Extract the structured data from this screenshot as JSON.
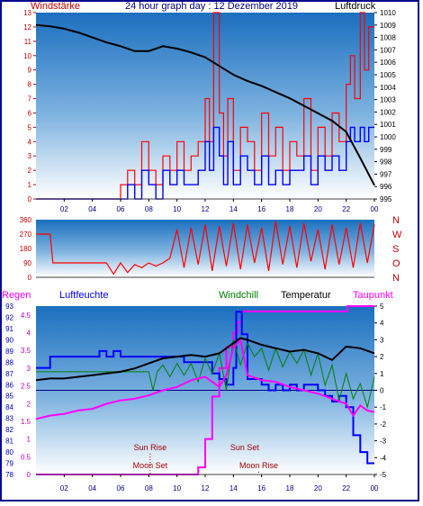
{
  "colors": {
    "wind": "#ff0000",
    "gust": "#ff0000",
    "speed": "#0000ff",
    "pressure": "#000000",
    "rain": "#ff00ff",
    "humidity": "#0000ff",
    "windchill": "#008000",
    "temperature": "#000000",
    "dewpoint": "#ff00ff",
    "direction": "#ff0000"
  },
  "chart_data": [
    {
      "type": "line",
      "title": "24 hour graph day : 12 Dezember 2019",
      "left_label": "Windstärke",
      "right_label": "Luftdruck",
      "x_ticks": [
        "02",
        "04",
        "06",
        "08",
        "10",
        "12",
        "14",
        "16",
        "18",
        "20",
        "22",
        "00"
      ],
      "y_left_ticks": [
        "0",
        "1",
        "2",
        "3",
        "4",
        "5",
        "6",
        "7",
        "8",
        "9",
        "10",
        "11",
        "12",
        "13"
      ],
      "y_right_ticks": [
        "995",
        "996",
        "997",
        "998",
        "999",
        "1000",
        "1001",
        "1002",
        "1003",
        "1004",
        "1005",
        "1006",
        "1007",
        "1008",
        "1009",
        "1010"
      ],
      "ylim_left": [
        0,
        13
      ],
      "ylim_right": [
        995,
        1010
      ],
      "xlim": [
        0,
        24
      ],
      "series": [
        {
          "key": "pressure",
          "axis": "right",
          "x": [
            0,
            1,
            2,
            3,
            4,
            5,
            6,
            7,
            8,
            9,
            10,
            11,
            12,
            13,
            14,
            15,
            16,
            17,
            18,
            19,
            20,
            21,
            22,
            23,
            24
          ],
          "y": [
            1009.0,
            1008.9,
            1008.7,
            1008.4,
            1008.0,
            1007.6,
            1007.3,
            1006.9,
            1006.9,
            1007.3,
            1007.1,
            1006.8,
            1006.4,
            1005.7,
            1005.0,
            1004.5,
            1004.1,
            1003.6,
            1003.1,
            1002.5,
            1001.9,
            1001.3,
            1000.4,
            998.3,
            996.1
          ]
        },
        {
          "key": "gust",
          "axis": "left",
          "x": [
            0,
            5.5,
            6,
            6.5,
            7,
            7.5,
            8,
            8.5,
            9,
            9.5,
            10,
            10.5,
            11,
            11.5,
            12,
            12.3,
            12.6,
            13,
            13.3,
            13.6,
            14,
            14.5,
            15,
            15.5,
            16,
            16.5,
            17,
            17.5,
            18,
            18.5,
            19,
            19.5,
            20,
            20.5,
            21,
            21.5,
            22,
            22.3,
            22.6,
            23,
            23.3,
            23.6,
            24
          ],
          "y": [
            0,
            0,
            1,
            2,
            1,
            4,
            2,
            1,
            3,
            2,
            4,
            2,
            3,
            4,
            7,
            4,
            13,
            6,
            3,
            7,
            2,
            5,
            4,
            2,
            6,
            3,
            5,
            2,
            4,
            3,
            7,
            2,
            5,
            3,
            6,
            4,
            8,
            10,
            7,
            13,
            9,
            12,
            12
          ]
        },
        {
          "key": "speed",
          "axis": "left",
          "x": [
            0,
            5.5,
            6,
            6.5,
            7,
            7.5,
            8,
            8.5,
            9,
            9.5,
            10,
            10.5,
            11,
            11.5,
            12,
            12.3,
            12.6,
            13,
            13.3,
            13.6,
            14,
            14.5,
            15,
            15.5,
            16,
            16.5,
            17,
            17.5,
            18,
            18.5,
            19,
            19.5,
            20,
            20.5,
            21,
            21.5,
            22,
            22.3,
            22.6,
            23,
            23.3,
            23.6,
            24
          ],
          "y": [
            0,
            0,
            0,
            1,
            0,
            2,
            1,
            0,
            2,
            1,
            2,
            1,
            1,
            2,
            4,
            2,
            5,
            3,
            1,
            4,
            1,
            3,
            2,
            1,
            3,
            1,
            2,
            1,
            2,
            2,
            3,
            1,
            3,
            2,
            3,
            2,
            4,
            5,
            4,
            5,
            4,
            5,
            5
          ]
        }
      ]
    },
    {
      "type": "line",
      "y_right_letters": [
        "N",
        "W",
        "S",
        "O",
        "N"
      ],
      "y_left_ticks": [
        "0",
        "90",
        "180",
        "270",
        "360"
      ],
      "ylim": [
        0,
        360
      ],
      "xlim": [
        0,
        24
      ],
      "series": [
        {
          "key": "direction",
          "x": [
            0,
            1,
            1.2,
            3,
            4,
            5,
            5.5,
            6,
            6.5,
            7,
            7.5,
            8,
            8.5,
            9,
            9.5,
            10,
            10.5,
            11,
            11.5,
            12,
            12.5,
            13,
            13.5,
            14,
            14.5,
            15,
            15.5,
            16,
            16.5,
            17,
            17.5,
            18,
            18.5,
            19,
            19.5,
            20,
            20.5,
            21,
            21.5,
            22,
            22.5,
            23,
            23.5,
            24
          ],
          "y": [
            270,
            270,
            90,
            90,
            90,
            90,
            20,
            90,
            30,
            80,
            60,
            90,
            70,
            90,
            120,
            300,
            60,
            310,
            80,
            330,
            40,
            320,
            70,
            340,
            50,
            330,
            90,
            310,
            40,
            350,
            80,
            320,
            60,
            340,
            100,
            300,
            50,
            330,
            80,
            310,
            60,
            340,
            90,
            330
          ]
        }
      ]
    },
    {
      "type": "line",
      "legend": [
        "Regen",
        "Luftfeuchte",
        "Windchill",
        "Temperatur",
        "Taupunkt"
      ],
      "annotations": [
        "Sun Rise",
        "Moon Set",
        "Sun Set",
        "Moon Rise"
      ],
      "y_rain_ticks": [
        "0",
        "0.5",
        "1",
        "1.5",
        "2",
        "2.5",
        "3",
        "3.5",
        "4",
        "4.5"
      ],
      "y_hum_ticks": [
        "78",
        "79",
        "80",
        "81",
        "82",
        "83",
        "84",
        "85",
        "86",
        "87",
        "88",
        "89",
        "90",
        "91",
        "92",
        "93"
      ],
      "y_temp_ticks": [
        "-5",
        "-4",
        "-3",
        "-2",
        "-1",
        "0",
        "1",
        "2",
        "3",
        "4",
        "5"
      ],
      "x_ticks": [
        "02",
        "04",
        "06",
        "08",
        "10",
        "12",
        "14",
        "16",
        "18",
        "20",
        "22",
        "00"
      ],
      "xlim": [
        0,
        24
      ],
      "ylim_hum": [
        78,
        93
      ],
      "ylim_temp": [
        -5,
        5
      ],
      "ylim_rain": [
        0,
        4.75
      ],
      "series": [
        {
          "key": "rain",
          "axis": "rain",
          "x": [
            0,
            11,
            11.5,
            12,
            12.5,
            13,
            13.5,
            14,
            14.3,
            14.6,
            15,
            20,
            22,
            22.1,
            24
          ],
          "y": [
            0,
            0,
            0.2,
            1.0,
            2.2,
            3.0,
            3.6,
            4.0,
            4.3,
            4.6,
            4.6,
            4.6,
            4.6,
            4.75,
            4.75
          ]
        },
        {
          "key": "humidity",
          "axis": "hum",
          "x": [
            0,
            0.5,
            1,
            4,
            4.5,
            5,
            5.5,
            6,
            10,
            10.5,
            12,
            12.5,
            13,
            13.5,
            14,
            14.2,
            14.6,
            15,
            16,
            16.5,
            17,
            17.5,
            18,
            18.5,
            19,
            20,
            20.5,
            21,
            21.5,
            22,
            22.5,
            23,
            23.5,
            24
          ],
          "y": [
            87.5,
            87.5,
            88.5,
            88.5,
            89.0,
            88.5,
            89.0,
            88.5,
            88.5,
            88.0,
            88.0,
            87.0,
            86.5,
            86.0,
            87.5,
            92.5,
            90.5,
            86.5,
            86.0,
            85.5,
            86.0,
            85.5,
            86.0,
            85.5,
            86.0,
            85.5,
            85.0,
            84.5,
            85.0,
            84.0,
            81.5,
            80.0,
            79.0,
            79.0
          ]
        },
        {
          "key": "temperature",
          "axis": "temp",
          "x": [
            0,
            1,
            2,
            3,
            4,
            5,
            6,
            7,
            8,
            9,
            10,
            11,
            12,
            13,
            14,
            14.5,
            15,
            16,
            17,
            18,
            19,
            20,
            21,
            22,
            23,
            24
          ],
          "y": [
            0.6,
            0.7,
            0.7,
            0.8,
            0.9,
            1.0,
            1.1,
            1.3,
            1.6,
            1.9,
            2.0,
            2.1,
            2.0,
            2.2,
            2.8,
            3.1,
            3.0,
            2.7,
            2.5,
            2.3,
            2.4,
            2.2,
            1.8,
            2.6,
            2.5,
            2.2
          ]
        },
        {
          "key": "windchill",
          "axis": "temp",
          "x": [
            0,
            8,
            8.3,
            8.6,
            9,
            9.5,
            10,
            10.5,
            11,
            11.5,
            12,
            12.5,
            13,
            13.5,
            14,
            14.5,
            15,
            15.5,
            16,
            16.5,
            17,
            17.5,
            18,
            18.5,
            19,
            19.5,
            20,
            20.5,
            21,
            21.5,
            22,
            22.5,
            23,
            23.5,
            24
          ],
          "y": [
            1.1,
            1.1,
            0.0,
            1.1,
            1.5,
            0.8,
            1.6,
            0.9,
            1.6,
            0.5,
            1.9,
            1.0,
            2.2,
            0.0,
            3.0,
            1.5,
            2.8,
            2.0,
            2.5,
            1.2,
            2.5,
            1.4,
            2.3,
            1.6,
            2.4,
            0.9,
            2.2,
            0.3,
            1.5,
            -0.6,
            1.0,
            -0.5,
            0.4,
            -1.0,
            0.8
          ]
        },
        {
          "key": "dewpoint",
          "axis": "temp",
          "x": [
            0,
            1,
            2,
            3,
            4,
            5,
            6,
            7,
            8,
            9,
            10,
            11,
            12,
            12.5,
            13,
            13.5,
            14,
            14.5,
            15,
            16,
            17,
            18,
            19,
            20,
            21,
            22,
            22.5,
            23,
            23.5,
            24
          ],
          "y": [
            -1.7,
            -1.5,
            -1.4,
            -1.2,
            -1.1,
            -0.8,
            -0.6,
            -0.5,
            -0.3,
            0.0,
            0.2,
            0.6,
            0.8,
            0.5,
            0.2,
            0.9,
            2.5,
            3.0,
            0.9,
            0.6,
            0.5,
            0.2,
            0.0,
            -0.2,
            -0.5,
            -0.8,
            -1.5,
            -0.9,
            -1.2,
            -1.3
          ]
        }
      ]
    }
  ]
}
